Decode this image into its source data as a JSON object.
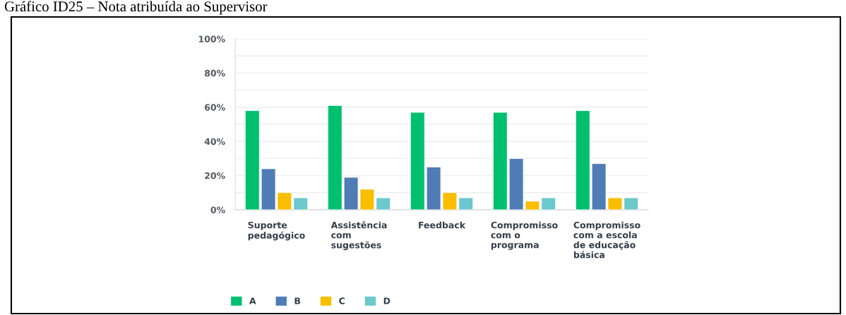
{
  "chart_data": {
    "type": "bar",
    "title": "Gráfico ID25 – Nota atribuída ao Supervisor",
    "categories": [
      "Suporte\npedagógico",
      "Assistência\ncom\nsugestões",
      "Feedback",
      "Compromisso\ncom o\nprograma",
      "Compromisso\ncom a escola\nde educação\nbásica"
    ],
    "series": [
      {
        "name": "A",
        "color": "#00bf6f",
        "values": [
          58,
          61,
          57,
          57,
          58
        ]
      },
      {
        "name": "B",
        "color": "#507cb6",
        "values": [
          24,
          19,
          25,
          30,
          27
        ]
      },
      {
        "name": "C",
        "color": "#f9be00",
        "values": [
          10,
          12,
          10,
          5,
          7
        ]
      },
      {
        "name": "D",
        "color": "#6bc8cd",
        "values": [
          7,
          7,
          7,
          7,
          7
        ]
      }
    ],
    "ylim": [
      0,
      100
    ],
    "yticks": [
      {
        "value": 0,
        "label": "0%"
      },
      {
        "value": 10,
        "label": null
      },
      {
        "value": 20,
        "label": "20%"
      },
      {
        "value": 30,
        "label": null
      },
      {
        "value": 40,
        "label": "40%"
      },
      {
        "value": 50,
        "label": null
      },
      {
        "value": 60,
        "label": "60%"
      },
      {
        "value": 70,
        "label": null
      },
      {
        "value": 80,
        "label": "80%"
      },
      {
        "value": 90,
        "label": null
      },
      {
        "value": 100,
        "label": "100%"
      }
    ],
    "grid": "y",
    "legend": "bottom left"
  }
}
